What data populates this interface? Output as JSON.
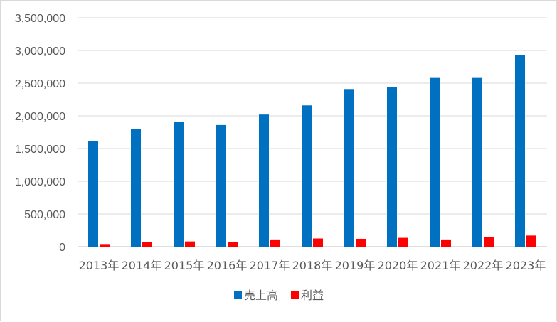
{
  "chart_data": {
    "type": "bar",
    "categories": [
      "2013年",
      "2014年",
      "2015年",
      "2016年",
      "2017年",
      "2018年",
      "2019年",
      "2020年",
      "2021年",
      "2022年",
      "2023年"
    ],
    "series": [
      {
        "name": "売上高",
        "color": "#0070c0",
        "values": [
          1610000,
          1800000,
          1910000,
          1860000,
          2020000,
          2160000,
          2410000,
          2440000,
          2580000,
          2580000,
          2930000
        ]
      },
      {
        "name": "利益",
        "color": "#ff0000",
        "values": [
          40000,
          70000,
          80000,
          75000,
          110000,
          125000,
          120000,
          135000,
          110000,
          150000,
          170000
        ]
      }
    ],
    "yticks": [
      "0",
      "500,000",
      "1,000,000",
      "1,500,000",
      "2,000,000",
      "2,500,000",
      "3,000,000",
      "3,500,000"
    ],
    "ylim": [
      0,
      3500000
    ],
    "grid": true,
    "legend": "bottom"
  }
}
